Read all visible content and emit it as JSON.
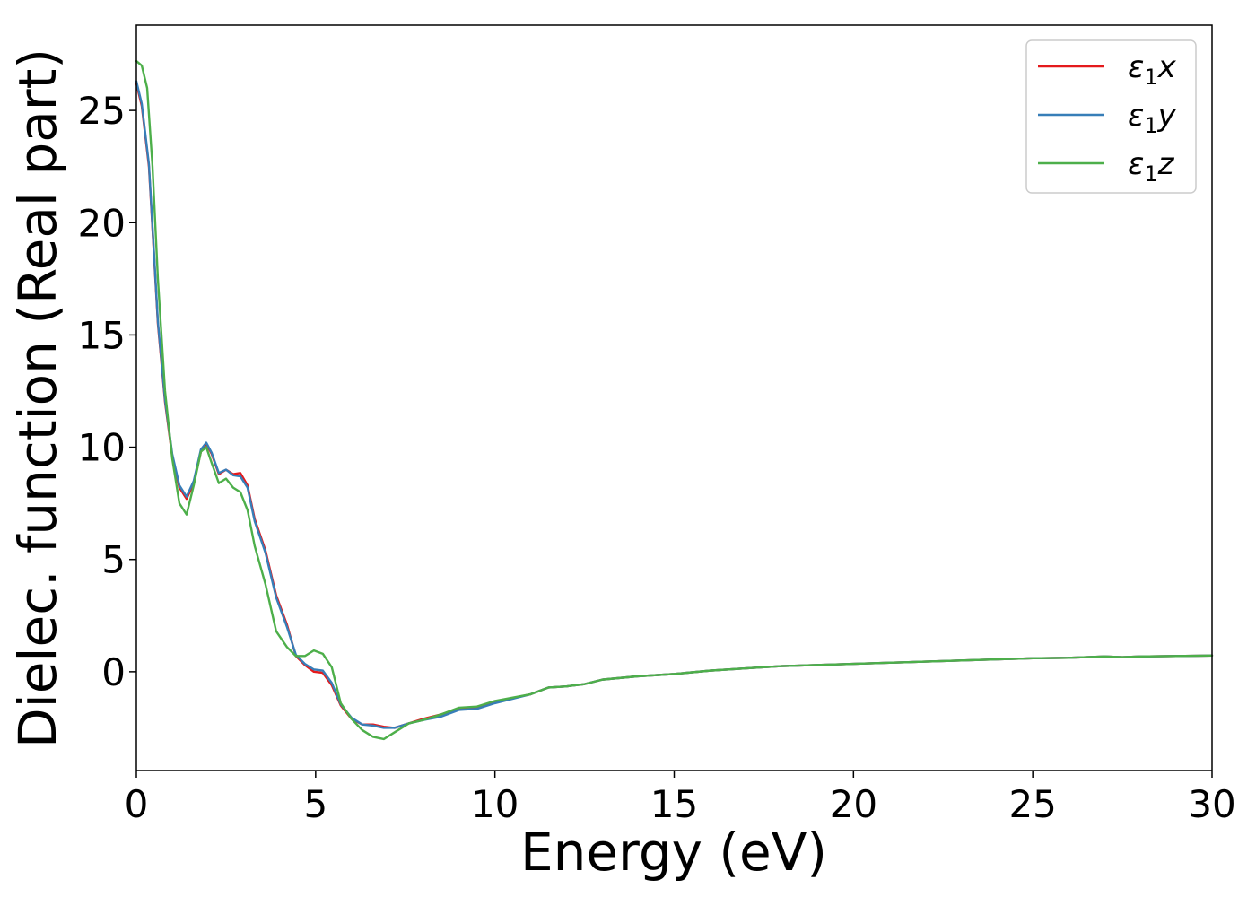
{
  "chart_data": {
    "type": "line",
    "xlabel": "Energy (eV)",
    "ylabel": "Dielec. function (Real part)",
    "xlim": [
      0,
      30
    ],
    "ylim": [
      -4.4,
      28.8
    ],
    "xticks": [
      0,
      5,
      10,
      15,
      20,
      25,
      30
    ],
    "yticks": [
      0,
      5,
      10,
      15,
      20,
      25
    ],
    "legend_position": "top-right",
    "grid": false,
    "series": [
      {
        "name": "ε1x",
        "legend": {
          "base": "ε",
          "sub": "1",
          "suffix": "x"
        },
        "color": "#e41a1c",
        "x": [
          0,
          0.15,
          0.35,
          0.6,
          0.8,
          1.0,
          1.2,
          1.4,
          1.6,
          1.8,
          1.95,
          2.1,
          2.3,
          2.5,
          2.7,
          2.9,
          3.1,
          3.3,
          3.6,
          3.9,
          4.2,
          4.45,
          4.7,
          4.95,
          5.2,
          5.45,
          5.7,
          6.0,
          6.3,
          6.6,
          6.9,
          7.2,
          7.6,
          8.0,
          8.5,
          9.0,
          9.5,
          10.0,
          11.0,
          11.5,
          12.0,
          12.5,
          13.0,
          14.0,
          15.0,
          16.0,
          17.0,
          18.0,
          19.0,
          20.0,
          21.0,
          22.0,
          23.0,
          24.0,
          25.0,
          26.0,
          27.0,
          27.5,
          28.0,
          29.0,
          30.0
        ],
        "values": [
          26.2,
          25.2,
          22.5,
          15.5,
          12.0,
          9.6,
          8.2,
          7.7,
          8.4,
          9.8,
          10.15,
          9.7,
          8.8,
          9.0,
          8.8,
          8.85,
          8.3,
          6.8,
          5.4,
          3.4,
          2.1,
          0.7,
          0.3,
          0.0,
          -0.05,
          -0.6,
          -1.5,
          -2.1,
          -2.35,
          -2.35,
          -2.45,
          -2.5,
          -2.3,
          -2.1,
          -1.9,
          -1.65,
          -1.6,
          -1.35,
          -1.0,
          -0.7,
          -0.65,
          -0.55,
          -0.35,
          -0.2,
          -0.1,
          0.05,
          0.15,
          0.25,
          0.3,
          0.35,
          0.4,
          0.45,
          0.5,
          0.55,
          0.6,
          0.62,
          0.68,
          0.65,
          0.68,
          0.7,
          0.72
        ]
      },
      {
        "name": "ε1y",
        "legend": {
          "base": "ε",
          "sub": "1",
          "suffix": "y"
        },
        "color": "#377eb8",
        "x": [
          0,
          0.15,
          0.35,
          0.6,
          0.8,
          1.0,
          1.2,
          1.4,
          1.6,
          1.8,
          1.95,
          2.1,
          2.3,
          2.5,
          2.7,
          2.9,
          3.1,
          3.3,
          3.6,
          3.9,
          4.2,
          4.45,
          4.7,
          4.95,
          5.2,
          5.45,
          5.7,
          6.0,
          6.3,
          6.6,
          6.9,
          7.2,
          7.6,
          8.0,
          8.5,
          9.0,
          9.5,
          10.0,
          11.0,
          11.5,
          12.0,
          12.5,
          13.0,
          14.0,
          15.0,
          16.0,
          17.0,
          18.0,
          19.0,
          20.0,
          21.0,
          22.0,
          23.0,
          24.0,
          25.0,
          26.0,
          27.0,
          27.5,
          28.0,
          29.0,
          30.0
        ],
        "values": [
          26.3,
          25.3,
          22.6,
          15.6,
          12.1,
          9.7,
          8.3,
          7.8,
          8.5,
          9.9,
          10.2,
          9.75,
          8.85,
          9.0,
          8.75,
          8.7,
          8.2,
          6.7,
          5.3,
          3.3,
          2.0,
          0.75,
          0.35,
          0.1,
          0.05,
          -0.5,
          -1.45,
          -2.05,
          -2.35,
          -2.4,
          -2.5,
          -2.5,
          -2.3,
          -2.15,
          -2.0,
          -1.7,
          -1.65,
          -1.4,
          -1.0,
          -0.7,
          -0.65,
          -0.55,
          -0.35,
          -0.2,
          -0.1,
          0.05,
          0.15,
          0.25,
          0.3,
          0.35,
          0.4,
          0.45,
          0.5,
          0.55,
          0.6,
          0.62,
          0.68,
          0.65,
          0.68,
          0.7,
          0.72
        ]
      },
      {
        "name": "ε1z",
        "legend": {
          "base": "ε",
          "sub": "1",
          "suffix": "z"
        },
        "color": "#4daf4a",
        "x": [
          0,
          0.15,
          0.3,
          0.45,
          0.6,
          0.8,
          1.0,
          1.2,
          1.4,
          1.6,
          1.8,
          1.95,
          2.1,
          2.3,
          2.5,
          2.7,
          2.9,
          3.1,
          3.3,
          3.6,
          3.9,
          4.2,
          4.45,
          4.7,
          4.95,
          5.2,
          5.45,
          5.7,
          6.0,
          6.3,
          6.6,
          6.9,
          7.2,
          7.6,
          8.0,
          8.5,
          9.0,
          9.5,
          10.0,
          11.0,
          11.5,
          12.0,
          12.5,
          13.0,
          14.0,
          15.0,
          16.0,
          17.0,
          18.0,
          19.0,
          20.0,
          21.0,
          22.0,
          23.0,
          24.0,
          25.0,
          26.0,
          27.0,
          27.5,
          28.0,
          29.0,
          30.0
        ],
        "values": [
          27.2,
          27.0,
          26.0,
          22.5,
          17.5,
          12.5,
          9.5,
          7.5,
          7.0,
          8.3,
          9.8,
          10.0,
          9.3,
          8.4,
          8.6,
          8.2,
          8.0,
          7.2,
          5.6,
          3.9,
          1.8,
          1.1,
          0.7,
          0.7,
          0.95,
          0.8,
          0.2,
          -1.4,
          -2.1,
          -2.6,
          -2.9,
          -3.0,
          -2.7,
          -2.3,
          -2.15,
          -1.9,
          -1.6,
          -1.55,
          -1.3,
          -1.0,
          -0.7,
          -0.65,
          -0.55,
          -0.35,
          -0.2,
          -0.1,
          0.05,
          0.15,
          0.25,
          0.3,
          0.35,
          0.4,
          0.45,
          0.5,
          0.55,
          0.6,
          0.62,
          0.68,
          0.65,
          0.68,
          0.7,
          0.72
        ]
      }
    ]
  }
}
